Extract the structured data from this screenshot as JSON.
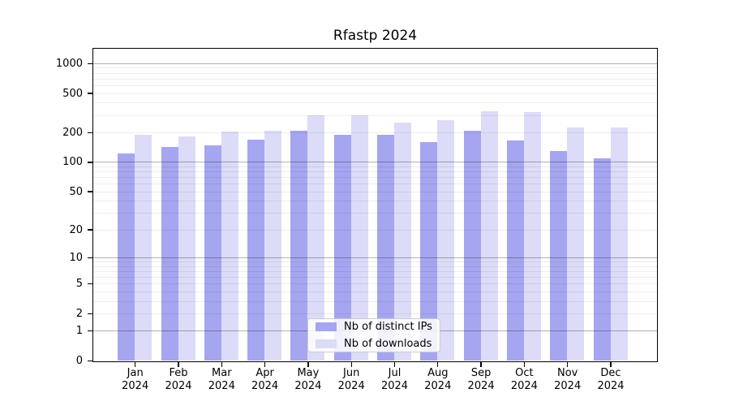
{
  "chart_data": {
    "type": "bar",
    "title": "Rfastp 2024",
    "scale": "log1p (symlog-style: y position proportional to ln(1+value), 0 at baseline)",
    "categories": [
      "Jan",
      "Feb",
      "Mar",
      "Apr",
      "May",
      "Jun",
      "Jul",
      "Aug",
      "Sep",
      "Oct",
      "Nov",
      "Dec"
    ],
    "x_year_label": "2024",
    "series": [
      {
        "name": "Nb of distinct IPs",
        "color": "#a5a5f0",
        "values": [
          123,
          143,
          147,
          168,
          206,
          190,
          189,
          159,
          209,
          166,
          128,
          108
        ]
      },
      {
        "name": "Nb of downloads",
        "color": "#dcdcf8",
        "values": [
          190,
          181,
          205,
          206,
          299,
          296,
          251,
          266,
          326,
          318,
          224,
          224
        ]
      }
    ],
    "y_axis": {
      "tick_labels": [
        0,
        1,
        2,
        5,
        10,
        20,
        50,
        100,
        200,
        500,
        1000
      ],
      "gridlines_major": [
        1,
        10,
        100,
        1000
      ],
      "gridlines_minor": [
        2,
        3,
        4,
        5,
        6,
        7,
        8,
        9,
        20,
        30,
        40,
        50,
        60,
        70,
        80,
        90,
        200,
        300,
        400,
        500,
        600,
        700,
        800,
        900
      ],
      "ylim": [
        0,
        1400
      ]
    },
    "legend_position": "bottom-center-inside",
    "grid": true,
    "colors": {
      "axis_border": "#000000",
      "grid_minor": "#ededed",
      "grid_major": "#b3b3b3",
      "background": "#ffffff"
    }
  }
}
